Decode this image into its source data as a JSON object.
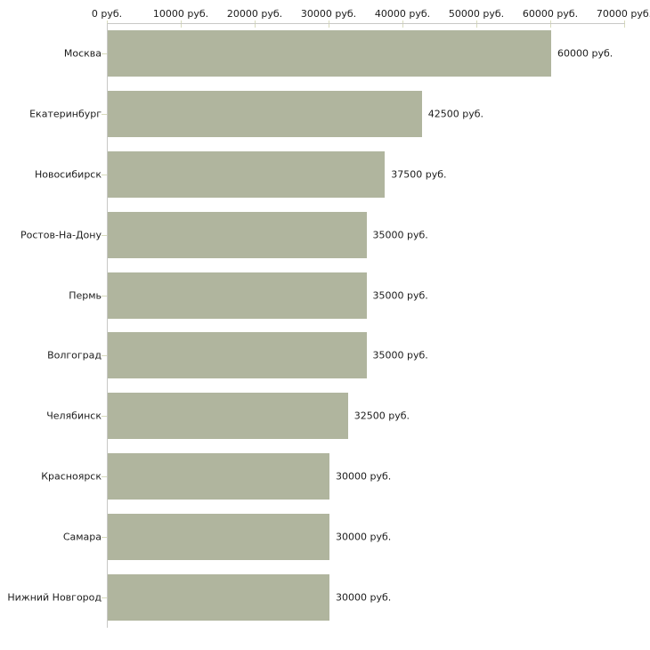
{
  "chart_data": {
    "type": "bar",
    "orientation": "horizontal",
    "title": "",
    "xlabel": "",
    "ylabel": "",
    "categories": [
      "Москва",
      "Екатеринбург",
      "Новосибирск",
      "Ростов-На-Дону",
      "Пермь",
      "Волгоград",
      "Челябинск",
      "Красноярск",
      "Самара",
      "Нижний Новгород"
    ],
    "values": [
      60000,
      42500,
      37500,
      35000,
      35000,
      35000,
      32500,
      30000,
      30000,
      30000
    ],
    "value_labels": [
      "60000 руб.",
      "42500 руб.",
      "37500 руб.",
      "35000 руб.",
      "35000 руб.",
      "35000 руб.",
      "32500 руб.",
      "30000 руб.",
      "30000 руб.",
      "30000 руб."
    ],
    "x_axis": {
      "min": 0,
      "max": 70000,
      "tick_step": 10000,
      "tick_labels": [
        "0 руб.",
        "10000 руб.",
        "20000 руб.",
        "30000 руб.",
        "40000 руб.",
        "50000 руб.",
        "60000 руб.",
        "70000 руб."
      ],
      "position": "top"
    },
    "layout_hints": {
      "grid": false,
      "legend": false,
      "bars_left_aligned": true
    },
    "colors": {
      "bar": "#b0b59e",
      "axis_line": "#c8c8c6",
      "tick": "#d8dbbc",
      "text": "#1c1c1c",
      "background": "#ffffff"
    }
  }
}
